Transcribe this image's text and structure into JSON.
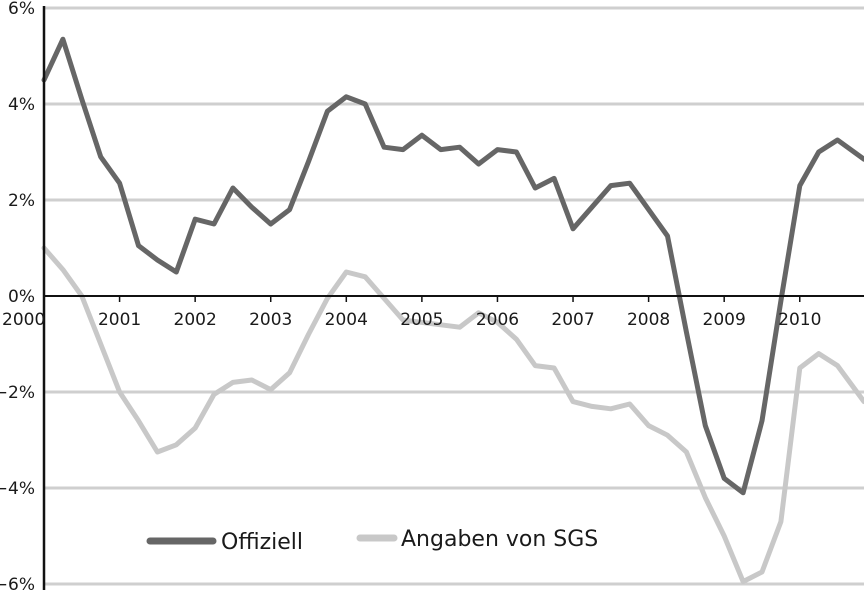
{
  "chart_data": {
    "type": "line",
    "title": "",
    "xlabel": "",
    "ylabel": "",
    "xlim": [
      2000,
      2010.85
    ],
    "ylim": [
      -6,
      6
    ],
    "grid": true,
    "legend_position": "bottom-left",
    "x_ticks": [
      "2000",
      "2001",
      "2002",
      "2003",
      "2004",
      "2005",
      "2006",
      "2007",
      "2008",
      "2009",
      "2010"
    ],
    "y_ticks": [
      "6%",
      "4%",
      "2%",
      "0%",
      "−2%",
      "−4%",
      "−6%"
    ],
    "y_tick_values": [
      6,
      4,
      2,
      0,
      -2,
      -4,
      -6
    ],
    "series": [
      {
        "name": "Offiziell",
        "color": "#666666",
        "points": [
          [
            2000.0,
            4.5
          ],
          [
            2000.25,
            5.35
          ],
          [
            2000.5,
            4.1
          ],
          [
            2000.75,
            2.9
          ],
          [
            2001.0,
            2.35
          ],
          [
            2001.25,
            1.05
          ],
          [
            2001.5,
            0.75
          ],
          [
            2001.75,
            0.5
          ],
          [
            2002.0,
            1.6
          ],
          [
            2002.25,
            1.5
          ],
          [
            2002.5,
            2.25
          ],
          [
            2002.75,
            1.85
          ],
          [
            2003.0,
            1.5
          ],
          [
            2003.25,
            1.8
          ],
          [
            2003.5,
            2.8
          ],
          [
            2003.75,
            3.85
          ],
          [
            2004.0,
            4.15
          ],
          [
            2004.25,
            4.0
          ],
          [
            2004.5,
            3.1
          ],
          [
            2004.75,
            3.05
          ],
          [
            2005.0,
            3.35
          ],
          [
            2005.25,
            3.05
          ],
          [
            2005.5,
            3.1
          ],
          [
            2005.75,
            2.75
          ],
          [
            2006.0,
            3.05
          ],
          [
            2006.25,
            3.0
          ],
          [
            2006.5,
            2.25
          ],
          [
            2006.75,
            2.45
          ],
          [
            2007.0,
            1.4
          ],
          [
            2007.25,
            1.85
          ],
          [
            2007.5,
            2.3
          ],
          [
            2007.75,
            2.35
          ],
          [
            2008.0,
            1.8
          ],
          [
            2008.25,
            1.25
          ],
          [
            2008.5,
            -0.75
          ],
          [
            2008.75,
            -2.7
          ],
          [
            2009.0,
            -3.8
          ],
          [
            2009.25,
            -4.1
          ],
          [
            2009.5,
            -2.6
          ],
          [
            2009.75,
            -0.1
          ],
          [
            2010.0,
            2.3
          ],
          [
            2010.25,
            3.0
          ],
          [
            2010.5,
            3.25
          ],
          [
            2010.85,
            2.85
          ]
        ]
      },
      {
        "name": "Angaben von SGS",
        "color": "#c8c8c8",
        "points": [
          [
            2000.0,
            1.0
          ],
          [
            2000.25,
            0.55
          ],
          [
            2000.5,
            0.0
          ],
          [
            2000.75,
            -1.0
          ],
          [
            2001.0,
            -2.0
          ],
          [
            2001.25,
            -2.6
          ],
          [
            2001.5,
            -3.25
          ],
          [
            2001.75,
            -3.1
          ],
          [
            2002.0,
            -2.75
          ],
          [
            2002.25,
            -2.05
          ],
          [
            2002.5,
            -1.8
          ],
          [
            2002.75,
            -1.75
          ],
          [
            2003.0,
            -1.95
          ],
          [
            2003.25,
            -1.6
          ],
          [
            2003.5,
            -0.8
          ],
          [
            2003.75,
            -0.05
          ],
          [
            2004.0,
            0.5
          ],
          [
            2004.25,
            0.4
          ],
          [
            2004.5,
            -0.05
          ],
          [
            2004.75,
            -0.5
          ],
          [
            2005.0,
            -0.55
          ],
          [
            2005.25,
            -0.6
          ],
          [
            2005.5,
            -0.65
          ],
          [
            2005.75,
            -0.35
          ],
          [
            2006.0,
            -0.55
          ],
          [
            2006.25,
            -0.9
          ],
          [
            2006.5,
            -1.45
          ],
          [
            2006.75,
            -1.5
          ],
          [
            2007.0,
            -2.2
          ],
          [
            2007.25,
            -2.3
          ],
          [
            2007.5,
            -2.35
          ],
          [
            2007.75,
            -2.25
          ],
          [
            2008.0,
            -2.7
          ],
          [
            2008.25,
            -2.9
          ],
          [
            2008.5,
            -3.25
          ],
          [
            2008.75,
            -4.2
          ],
          [
            2009.0,
            -5.0
          ],
          [
            2009.25,
            -5.95
          ],
          [
            2009.5,
            -5.75
          ],
          [
            2009.75,
            -4.7
          ],
          [
            2010.0,
            -1.5
          ],
          [
            2010.25,
            -1.2
          ],
          [
            2010.5,
            -1.45
          ],
          [
            2010.85,
            -2.2
          ]
        ]
      }
    ]
  }
}
